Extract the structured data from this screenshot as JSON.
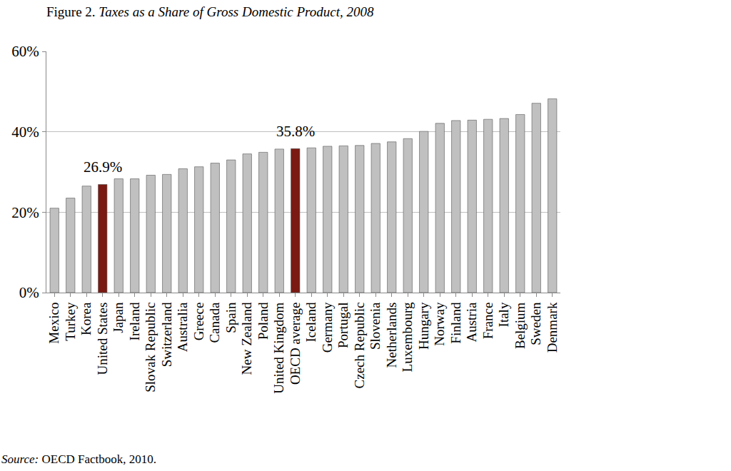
{
  "chart_data": {
    "type": "bar",
    "title": "Figure 2. Taxes as a Share of Gross Domestic Product, 2008",
    "source": "Source: OECD Factbook, 2010.",
    "categories": [
      "Mexico",
      "Turkey",
      "Korea",
      "United States",
      "Japan",
      "Ireland",
      "Slovak Republic",
      "Switzerland",
      "Australia",
      "Greece",
      "Canada",
      "Spain",
      "New Zealand",
      "Poland",
      "United Kingdom",
      "OECD average",
      "Iceland",
      "Germany",
      "Portugal",
      "Czech Republic",
      "Slovenia",
      "Netherlands",
      "Luxembourg",
      "Hungary",
      "Norway",
      "Finland",
      "Austria",
      "France",
      "Italy",
      "Belgium",
      "Sweden",
      "Denmark"
    ],
    "values": [
      21.0,
      23.5,
      26.5,
      26.9,
      28.3,
      28.3,
      29.2,
      29.4,
      30.8,
      31.3,
      32.2,
      33.0,
      34.5,
      34.9,
      35.7,
      35.8,
      36.0,
      36.4,
      36.5,
      36.6,
      37.1,
      37.5,
      38.3,
      40.1,
      42.1,
      42.8,
      42.9,
      43.1,
      43.3,
      44.3,
      47.1,
      48.2
    ],
    "colors": [
      "#c0c0c0",
      "#c0c0c0",
      "#c0c0c0",
      "#7a1a12",
      "#c0c0c0",
      "#c0c0c0",
      "#c0c0c0",
      "#c0c0c0",
      "#c0c0c0",
      "#c0c0c0",
      "#c0c0c0",
      "#c0c0c0",
      "#c0c0c0",
      "#c0c0c0",
      "#c0c0c0",
      "#7a1a12",
      "#c0c0c0",
      "#c0c0c0",
      "#c0c0c0",
      "#c0c0c0",
      "#c0c0c0",
      "#c0c0c0",
      "#c0c0c0",
      "#c0c0c0",
      "#c0c0c0",
      "#c0c0c0",
      "#c0c0c0",
      "#c0c0c0",
      "#c0c0c0",
      "#c0c0c0",
      "#c0c0c0",
      "#c0c0c0"
    ],
    "annotations": [
      {
        "category": "United States",
        "text": "26.9%"
      },
      {
        "category": "OECD average",
        "text": "35.8%"
      }
    ],
    "ylim": [
      0,
      60
    ],
    "yticks": [
      {
        "value": 0,
        "label": "0%"
      },
      {
        "value": 20,
        "label": "20%"
      },
      {
        "value": 40,
        "label": "40%"
      },
      {
        "value": 60,
        "label": "60%"
      }
    ],
    "grid": true
  }
}
